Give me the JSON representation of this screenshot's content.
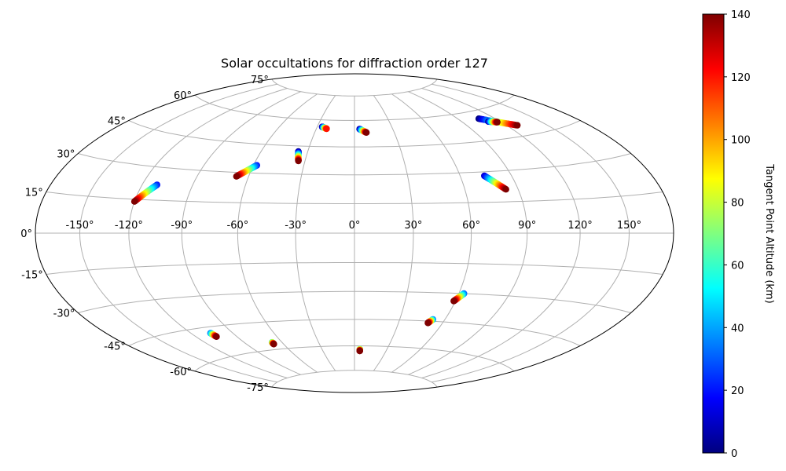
{
  "chart_data": {
    "type": "scatter",
    "title": "Solar occultations for diffraction order 127",
    "projection": "aitoff-hammer",
    "grid": true,
    "lon_ticks": [
      -150,
      -120,
      -90,
      -60,
      -30,
      0,
      30,
      60,
      90,
      120,
      150
    ],
    "lon_tick_labels": [
      "-150°",
      "-120°",
      "-90°",
      "-60°",
      "-30°",
      "0°",
      "30°",
      "60°",
      "90°",
      "120°",
      "150°"
    ],
    "lat_ticks": [
      -75,
      -60,
      -45,
      -30,
      -15,
      0,
      15,
      30,
      45,
      60,
      75
    ],
    "lat_tick_labels": [
      "-75°",
      "-60°",
      "-45°",
      "-30°",
      "-15°",
      "0°",
      "15°",
      "30°",
      "45°",
      "60°",
      "75°"
    ],
    "colorbar": {
      "label": "Tangent Point Altitude (km)",
      "colormap": "jet",
      "range": [
        0,
        140
      ],
      "ticks": [
        0,
        20,
        40,
        60,
        80,
        100,
        120,
        140
      ],
      "tick_labels": [
        "0",
        "20",
        "40",
        "60",
        "80",
        "100",
        "120",
        "140"
      ]
    },
    "series": [
      {
        "lon_start": -111,
        "lat_start": 22,
        "lon_end": -120,
        "lat_end": 14,
        "alt_start": 20,
        "alt_end": 140
      },
      {
        "lon_start": -58,
        "lat_start": 34,
        "lon_end": -67,
        "lat_end": 28,
        "alt_start": 20,
        "alt_end": 140
      },
      {
        "lon_start": -36,
        "lat_start": 42,
        "lon_end": -34,
        "lat_end": 37,
        "alt_start": 0,
        "alt_end": 140
      },
      {
        "lon_start": -26,
        "lat_start": 56,
        "lon_end": -22,
        "lat_end": 55,
        "alt_start": 0,
        "alt_end": 120
      },
      {
        "lon_start": 4,
        "lat_start": 55,
        "lon_end": 9,
        "lat_end": 53,
        "alt_start": 0,
        "alt_end": 140
      },
      {
        "lon_start": 107,
        "lat_start": 56,
        "lon_end": 128,
        "lat_end": 50,
        "alt_start": 0,
        "alt_end": 140
      },
      {
        "lon_start": 111,
        "lat_start": 54,
        "lon_end": 117,
        "lat_end": 53,
        "alt_start": 0,
        "alt_end": 140
      },
      {
        "lon_start": 74,
        "lat_start": 28,
        "lon_end": 83,
        "lat_end": 21,
        "alt_start": 10,
        "alt_end": 140
      },
      {
        "lon_start": 63,
        "lat_start": -30,
        "lon_end": 59,
        "lat_end": -34,
        "alt_start": 30,
        "alt_end": 140
      },
      {
        "lon_start": 52,
        "lat_start": -44,
        "lon_end": 50,
        "lat_end": -46,
        "alt_start": 30,
        "alt_end": 140
      },
      {
        "lon_start": -106,
        "lat_start": -48,
        "lon_end": -105,
        "lat_end": -50,
        "alt_start": 30,
        "alt_end": 140
      },
      {
        "lon_start": -68,
        "lat_start": -56,
        "lon_end": -68,
        "lat_end": -57,
        "alt_start": 60,
        "alt_end": 140
      },
      {
        "lon_start": 5,
        "lat_start": -62,
        "lon_end": 5,
        "lat_end": -63,
        "alt_start": 60,
        "alt_end": 140
      }
    ]
  }
}
